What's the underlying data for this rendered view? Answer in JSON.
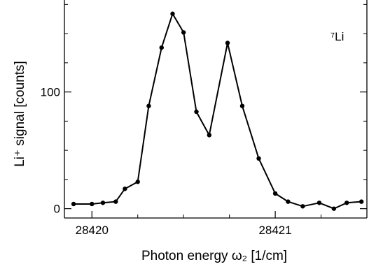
{
  "chart_data": {
    "type": "line",
    "xlabel": "Photon energy ω₂   [1/cm]",
    "ylabel": "Li⁺ signal   [counts]",
    "annotation": "⁷Li",
    "xlim": [
      28419.85,
      28421.5
    ],
    "ylim": [
      -8,
      180
    ],
    "x_ticks": [
      28420,
      28421
    ],
    "x_tick_labels": [
      "28420",
      "28421"
    ],
    "y_ticks": [
      0,
      100
    ],
    "y_tick_labels": [
      "0",
      "100"
    ],
    "series": [
      {
        "color": "#000000",
        "marker": "dot",
        "x": [
          28419.9,
          28420.0,
          28420.06,
          28420.13,
          28420.18,
          28420.25,
          28420.31,
          28420.38,
          28420.44,
          28420.5,
          28420.57,
          28420.64,
          28420.74,
          28420.82,
          28420.91,
          28421.0,
          28421.07,
          28421.15,
          28421.24,
          28421.32,
          28421.39,
          28421.47
        ],
        "y": [
          4,
          4,
          5,
          6,
          17,
          23,
          88,
          138,
          167,
          151,
          83,
          63,
          142,
          88,
          43,
          13,
          6,
          2,
          5,
          0,
          5,
          6
        ]
      }
    ]
  }
}
